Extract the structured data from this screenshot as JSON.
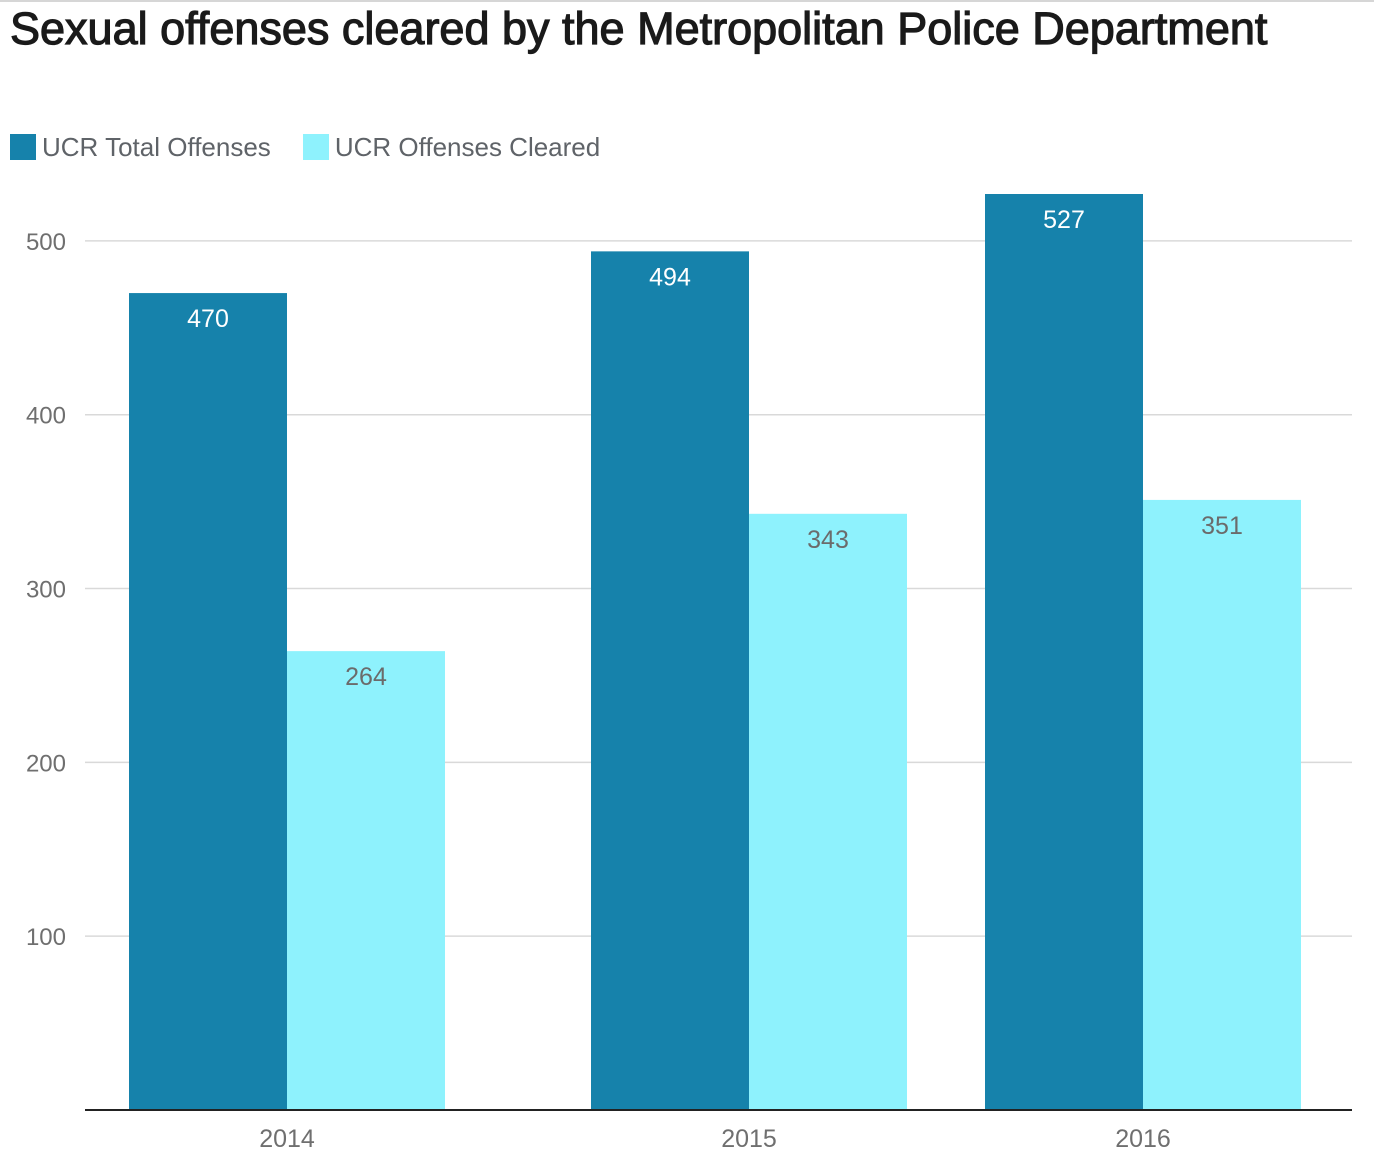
{
  "chart_data": {
    "type": "bar",
    "title": "Sexual offenses cleared by the Metropolitan Police Department",
    "categories": [
      "2014",
      "2015",
      "2016"
    ],
    "series": [
      {
        "name": "UCR Total Offenses",
        "values": [
          470,
          494,
          527
        ],
        "color": "#1682ab"
      },
      {
        "name": "UCR Offenses Cleared",
        "values": [
          264,
          343,
          351
        ],
        "color": "#8ef2fd"
      }
    ],
    "ylim": [
      0,
      527
    ],
    "yticks": [
      100,
      200,
      300,
      400,
      500
    ],
    "xlabel": "",
    "ylabel": "",
    "grid": true,
    "legend_position": "top-left",
    "data_labels": true
  }
}
